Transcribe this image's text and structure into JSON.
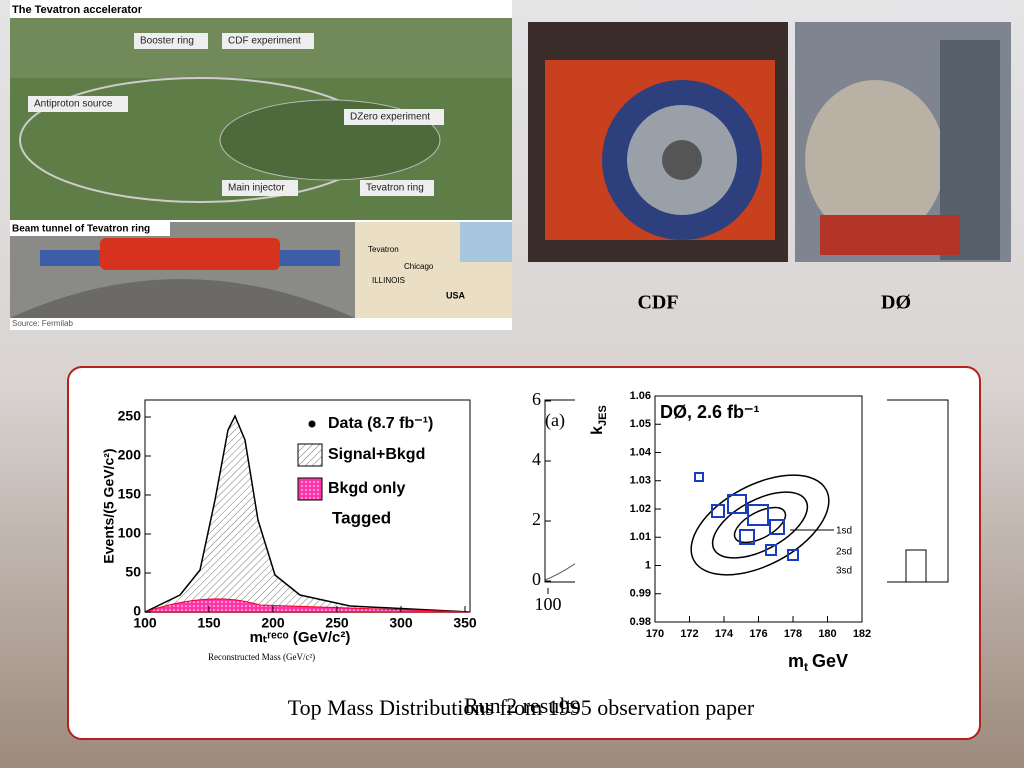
{
  "accelerator_panel": {
    "title": "The Tevatron accelerator",
    "labels": [
      "Booster ring",
      "CDF experiment",
      "Antiproton source",
      "DZero experiment",
      "Main injector",
      "Tevatron ring"
    ],
    "tunnel_title": "Beam tunnel of Tevatron ring",
    "map_labels": [
      "Tevatron",
      "Chicago",
      "ILLINOIS",
      "USA"
    ],
    "source": "Source: Fermilab"
  },
  "detectors": [
    "CDF",
    "DØ"
  ],
  "left_plot": {
    "y_label": "Events/(5 GeV/c²)",
    "x_label": "mₜʳᵉᶜᵒ (GeV/c²)",
    "legend": [
      "Data (8.7 fb⁻¹)",
      "Signal+Bkgd",
      "Bkgd only"
    ],
    "tag": "Tagged",
    "caption": "Reconstructed Mass (GeV/c²)",
    "yticks": [
      0,
      50,
      100,
      150,
      200,
      250
    ],
    "xticks": [
      100,
      150,
      200,
      250,
      300,
      350
    ]
  },
  "middle_plot": {
    "panel": "(a)",
    "yticks": [
      0,
      2,
      4,
      6
    ],
    "xticks": [
      100
    ]
  },
  "right_plot": {
    "title": "DØ, 2.6 fb⁻¹",
    "y_label": "k",
    "y_label_sub": "JES",
    "x_label": "m",
    "x_label_sub": "t",
    "x_label_unit": "GeV",
    "yticks": [
      0.98,
      0.99,
      1,
      1.01,
      1.02,
      1.03,
      1.04,
      1.05,
      1.06
    ],
    "xticks": [
      170,
      172,
      174,
      176,
      178,
      180,
      182
    ],
    "contours": [
      "1sd",
      "2sd",
      "3sd"
    ]
  },
  "captions": {
    "main": "Top Mass Distributions from 1995 observation paper",
    "overlay": "Run 2 results"
  }
}
